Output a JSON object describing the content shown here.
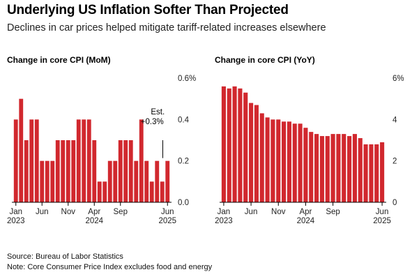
{
  "title": "Underlying US Inflation Softer Than Projected",
  "subtitle": "Declines in car prices helped mitigate tariff-related increases elsewhere",
  "source": "Source: Bureau of Labor Statistics",
  "note": "Note: Core Consumer Price Index excludes food and energy",
  "colors": {
    "bar": "#d1282e",
    "text": "#000000",
    "axis": "#000000"
  },
  "chart_data": [
    {
      "type": "bar",
      "title": "Change in core CPI (MoM)",
      "unit": "%",
      "ylim": [
        0,
        0.6
      ],
      "yticks": [
        0.0,
        0.2,
        0.4,
        0.6
      ],
      "ytick_labels": [
        "0.0",
        "0.2",
        "0.4",
        "0.6%"
      ],
      "categories": [
        "2023-01",
        "2023-02",
        "2023-03",
        "2023-04",
        "2023-05",
        "2023-06",
        "2023-07",
        "2023-08",
        "2023-09",
        "2023-10",
        "2023-11",
        "2023-12",
        "2024-01",
        "2024-02",
        "2024-03",
        "2024-04",
        "2024-05",
        "2024-06",
        "2024-07",
        "2024-08",
        "2024-09",
        "2024-10",
        "2024-11",
        "2024-12",
        "2025-01",
        "2025-02",
        "2025-03",
        "2025-04",
        "2025-05",
        "2025-06"
      ],
      "values": [
        0.4,
        0.5,
        0.3,
        0.4,
        0.4,
        0.2,
        0.2,
        0.2,
        0.3,
        0.3,
        0.3,
        0.3,
        0.4,
        0.4,
        0.4,
        0.3,
        0.1,
        0.1,
        0.2,
        0.2,
        0.3,
        0.3,
        0.3,
        0.2,
        0.4,
        0.2,
        0.1,
        0.2,
        0.1,
        0.2
      ],
      "xticks": [
        {
          "index": 0,
          "label": "Jan",
          "year": "2023"
        },
        {
          "index": 5,
          "label": "Jun",
          "year": ""
        },
        {
          "index": 10,
          "label": "Nov",
          "year": ""
        },
        {
          "index": 15,
          "label": "Apr",
          "year": "2024"
        },
        {
          "index": 20,
          "label": "Sep",
          "year": ""
        },
        {
          "index": 29,
          "label": "Jun",
          "year": "2025"
        }
      ],
      "annotation": {
        "index": 29,
        "line1": "Est.",
        "line2": "+0.3%",
        "value": 0.3
      },
      "grid": false
    },
    {
      "type": "bar",
      "title": "Change in core CPI (YoY)",
      "unit": "%",
      "ylim": [
        0,
        6
      ],
      "yticks": [
        0,
        2,
        4,
        6
      ],
      "ytick_labels": [
        "0",
        "2",
        "4",
        "6%"
      ],
      "categories": [
        "2023-01",
        "2023-02",
        "2023-03",
        "2023-04",
        "2023-05",
        "2023-06",
        "2023-07",
        "2023-08",
        "2023-09",
        "2023-10",
        "2023-11",
        "2023-12",
        "2024-01",
        "2024-02",
        "2024-03",
        "2024-04",
        "2024-05",
        "2024-06",
        "2024-07",
        "2024-08",
        "2024-09",
        "2024-10",
        "2024-11",
        "2024-12",
        "2025-01",
        "2025-02",
        "2025-03",
        "2025-04",
        "2025-05",
        "2025-06"
      ],
      "values": [
        5.6,
        5.5,
        5.6,
        5.5,
        5.3,
        4.8,
        4.7,
        4.3,
        4.1,
        4.0,
        4.0,
        3.9,
        3.9,
        3.8,
        3.8,
        3.6,
        3.4,
        3.3,
        3.2,
        3.2,
        3.3,
        3.3,
        3.3,
        3.2,
        3.3,
        3.1,
        2.8,
        2.8,
        2.8,
        2.9
      ],
      "xticks": [
        {
          "index": 0,
          "label": "Jan",
          "year": "2023"
        },
        {
          "index": 5,
          "label": "Jun",
          "year": ""
        },
        {
          "index": 10,
          "label": "Nov",
          "year": ""
        },
        {
          "index": 15,
          "label": "Apr",
          "year": "2024"
        },
        {
          "index": 20,
          "label": "Sep",
          "year": ""
        },
        {
          "index": 29,
          "label": "Jun",
          "year": "2025"
        }
      ],
      "grid": false
    }
  ]
}
